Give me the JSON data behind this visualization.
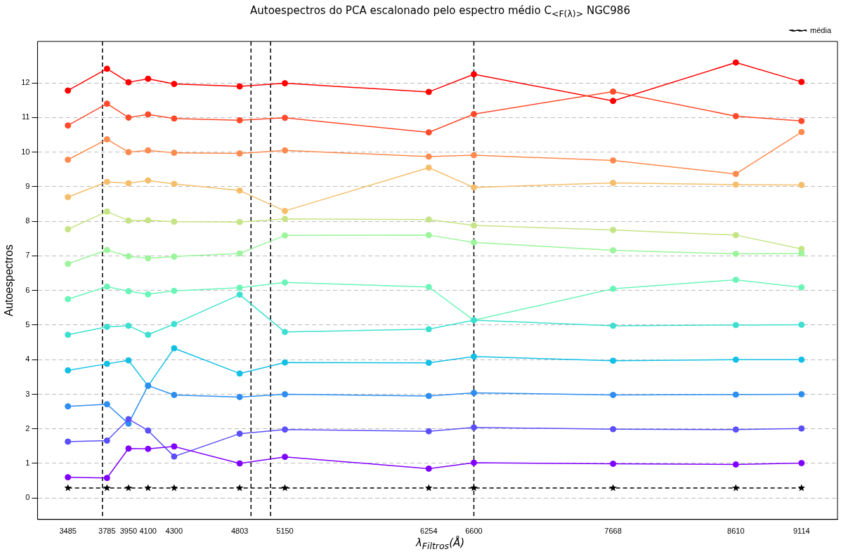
{
  "chart_data": {
    "type": "line",
    "title": "Autoespectros do PCA escalonado pelo espectro médio C$_{<F(λ)>}$ NGC986",
    "xlabel": "λ$_{Filtros}$(Å)",
    "ylabel": "Autoespectros",
    "x": [
      3485,
      3785,
      3950,
      4100,
      4300,
      4803,
      5150,
      6254,
      6600,
      7668,
      8610,
      9114
    ],
    "xlim": [
      3252,
      9390
    ],
    "xticks": [
      3485,
      3785,
      3950,
      4100,
      4300,
      4803,
      5150,
      6254,
      6600,
      7668,
      8610,
      9114
    ],
    "ylim": [
      -0.62,
      13.2
    ],
    "yticks": [
      0,
      1,
      2,
      3,
      4,
      5,
      6,
      7,
      8,
      9,
      10,
      11,
      12
    ],
    "grid": "y",
    "legend": "top right",
    "marker": "circle",
    "line_style": "solid",
    "ref_lines": [
      {
        "axis": "x",
        "value": 3750,
        "color": "#000000",
        "line_style": "dashed"
      },
      {
        "axis": "x",
        "value": 4890,
        "color": "#000000",
        "line_style": "dashed"
      },
      {
        "axis": "x",
        "value": 5040,
        "color": "#000000",
        "line_style": "dashed"
      },
      {
        "axis": "x",
        "value": 6600,
        "color": "#000000",
        "line_style": "dashed"
      }
    ],
    "series": [
      {
        "color": "#8000ff",
        "values": [
          0.6,
          0.58,
          1.43,
          1.42,
          1.49,
          1.0,
          1.19,
          0.85,
          1.02,
          0.99,
          0.97,
          1.01
        ]
      },
      {
        "color": "#5a4ff8",
        "values": [
          1.63,
          1.66,
          2.28,
          1.95,
          1.2,
          1.86,
          1.98,
          1.93,
          2.04,
          1.99,
          1.98,
          2.01
        ]
      },
      {
        "color": "#2c8ef0",
        "values": [
          2.65,
          2.71,
          2.15,
          3.25,
          2.98,
          2.92,
          3.0,
          2.95,
          3.04,
          2.98,
          2.99,
          3.0
        ]
      },
      {
        "color": "#12c0e6",
        "values": [
          3.69,
          3.88,
          3.98,
          3.24,
          4.33,
          3.6,
          3.92,
          3.91,
          4.09,
          3.97,
          4.0,
          4.0
        ]
      },
      {
        "color": "#3de0d0",
        "values": [
          4.72,
          4.95,
          4.98,
          4.72,
          5.03,
          5.88,
          4.8,
          4.88,
          5.14,
          4.98,
          5.0,
          5.01
        ]
      },
      {
        "color": "#6af5b8",
        "values": [
          5.75,
          6.11,
          5.98,
          5.89,
          5.99,
          6.08,
          6.23,
          6.1,
          5.14,
          6.05,
          6.31,
          6.09
        ]
      },
      {
        "color": "#9bf59a",
        "values": [
          6.77,
          7.17,
          6.99,
          6.93,
          6.98,
          7.07,
          7.59,
          7.6,
          7.39,
          7.16,
          7.06,
          7.07
        ]
      },
      {
        "color": "#c5e484",
        "values": [
          7.77,
          8.28,
          8.02,
          8.03,
          7.99,
          7.98,
          8.07,
          8.05,
          7.88,
          7.75,
          7.6,
          7.2
        ]
      },
      {
        "color": "#f5be6a",
        "values": [
          8.7,
          9.14,
          9.1,
          9.18,
          9.08,
          8.89,
          8.3,
          9.55,
          8.98,
          9.11,
          9.06,
          9.05
        ]
      },
      {
        "color": "#ff8a4d",
        "values": [
          9.78,
          10.37,
          10.0,
          10.05,
          9.98,
          9.96,
          10.05,
          9.87,
          9.91,
          9.76,
          9.37,
          10.58
        ]
      },
      {
        "color": "#ff4a2a",
        "values": [
          10.77,
          11.4,
          11.0,
          11.09,
          10.97,
          10.92,
          10.99,
          10.57,
          11.1,
          11.75,
          11.04,
          10.9
        ]
      },
      {
        "color": "#ff0000",
        "values": [
          11.78,
          12.41,
          12.02,
          12.12,
          11.97,
          11.9,
          11.99,
          11.74,
          12.25,
          11.48,
          12.59,
          12.03
        ]
      },
      {
        "name": "média",
        "color": "#000000",
        "marker": "star",
        "line_style": "dashed",
        "values": [
          0.29,
          0.29,
          0.29,
          0.29,
          0.29,
          0.29,
          0.29,
          0.29,
          0.29,
          0.29,
          0.29,
          0.29
        ]
      }
    ]
  }
}
